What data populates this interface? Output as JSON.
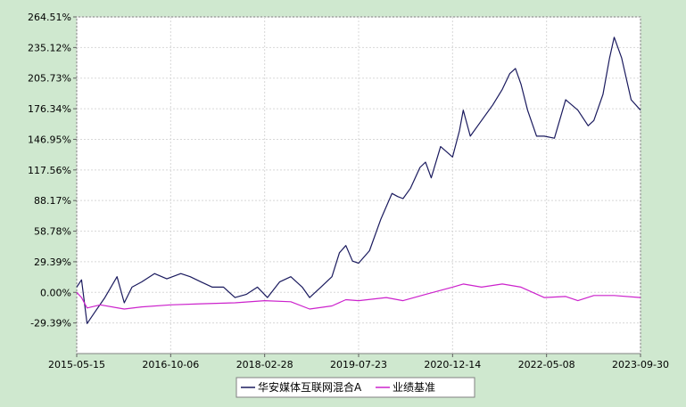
{
  "chart_data": {
    "type": "line",
    "title": "",
    "xlabel": "",
    "ylabel": "",
    "x_ticks": [
      "2015-05-15",
      "2016-10-06",
      "2018-02-28",
      "2019-07-23",
      "2020-12-14",
      "2022-05-08",
      "2023-09-30"
    ],
    "y_ticks": [
      "-29.39%",
      "0.00%",
      "29.39%",
      "58.78%",
      "88.17%",
      "117.56%",
      "146.95%",
      "176.34%",
      "205.73%",
      "235.12%",
      "264.51%"
    ],
    "ylim": [
      -58.78,
      264.51
    ],
    "xlim": [
      "2015-05-15",
      "2023-09-30"
    ],
    "grid": true,
    "legend_position": "bottom-center",
    "series": [
      {
        "name": "华安媒体互联网混合A",
        "color": "#1a1a5e",
        "x": [
          "2015-05-15",
          "2015-06-10",
          "2015-07-10",
          "2015-08-25",
          "2015-10-15",
          "2015-12-20",
          "2016-01-28",
          "2016-03-10",
          "2016-05-01",
          "2016-07-10",
          "2016-09-15",
          "2016-11-30",
          "2017-01-20",
          "2017-03-20",
          "2017-05-20",
          "2017-07-20",
          "2017-09-20",
          "2017-11-20",
          "2018-01-20",
          "2018-03-15",
          "2018-05-20",
          "2018-07-20",
          "2018-09-20",
          "2018-10-30",
          "2018-12-30",
          "2019-02-28",
          "2019-04-10",
          "2019-05-15",
          "2019-06-20",
          "2019-07-23",
          "2019-09-20",
          "2019-11-20",
          "2020-01-20",
          "2020-02-20",
          "2020-03-20",
          "2020-04-30",
          "2020-06-20",
          "2020-07-20",
          "2020-08-20",
          "2020-10-10",
          "2020-12-14",
          "2021-01-20",
          "2021-02-10",
          "2021-03-20",
          "2021-05-20",
          "2021-07-20",
          "2021-09-10",
          "2021-10-20",
          "2021-11-20",
          "2021-12-20",
          "2022-01-25",
          "2022-03-15",
          "2022-04-25",
          "2022-06-20",
          "2022-08-20",
          "2022-10-25",
          "2022-12-20",
          "2023-01-20",
          "2023-03-10",
          "2023-04-15",
          "2023-05-10",
          "2023-06-20",
          "2023-08-10",
          "2023-09-30"
        ],
        "values": [
          5,
          12,
          -30,
          -18,
          -5,
          15,
          -10,
          5,
          10,
          18,
          13,
          18,
          15,
          10,
          5,
          5,
          -5,
          -2,
          5,
          -5,
          10,
          15,
          5,
          -5,
          5,
          15,
          38,
          45,
          30,
          28,
          40,
          70,
          95,
          92,
          90,
          100,
          120,
          125,
          110,
          140,
          130,
          155,
          175,
          150,
          165,
          180,
          195,
          210,
          215,
          200,
          175,
          150,
          150,
          148,
          185,
          175,
          160,
          165,
          190,
          225,
          245,
          225,
          185,
          175
        ]
      },
      {
        "name": "业绩基准",
        "color": "#cc22cc",
        "x": [
          "2015-05-15",
          "2015-06-10",
          "2015-07-10",
          "2015-09-20",
          "2016-01-28",
          "2016-05-01",
          "2016-10-06",
          "2017-03-20",
          "2017-09-20",
          "2018-02-28",
          "2018-07-20",
          "2018-10-30",
          "2019-02-28",
          "2019-05-15",
          "2019-07-23",
          "2019-12-20",
          "2020-03-20",
          "2020-07-20",
          "2020-12-14",
          "2021-02-10",
          "2021-05-20",
          "2021-09-10",
          "2021-12-20",
          "2022-04-25",
          "2022-08-20",
          "2022-10-25",
          "2023-01-20",
          "2023-05-10",
          "2023-09-30"
        ],
        "values": [
          0,
          -5,
          -15,
          -12,
          -16,
          -14,
          -12,
          -11,
          -10,
          -8,
          -9,
          -16,
          -13,
          -7,
          -8,
          -5,
          -8,
          -2,
          5,
          8,
          5,
          8,
          5,
          -5,
          -4,
          -8,
          -3,
          -3,
          -5
        ]
      }
    ]
  }
}
